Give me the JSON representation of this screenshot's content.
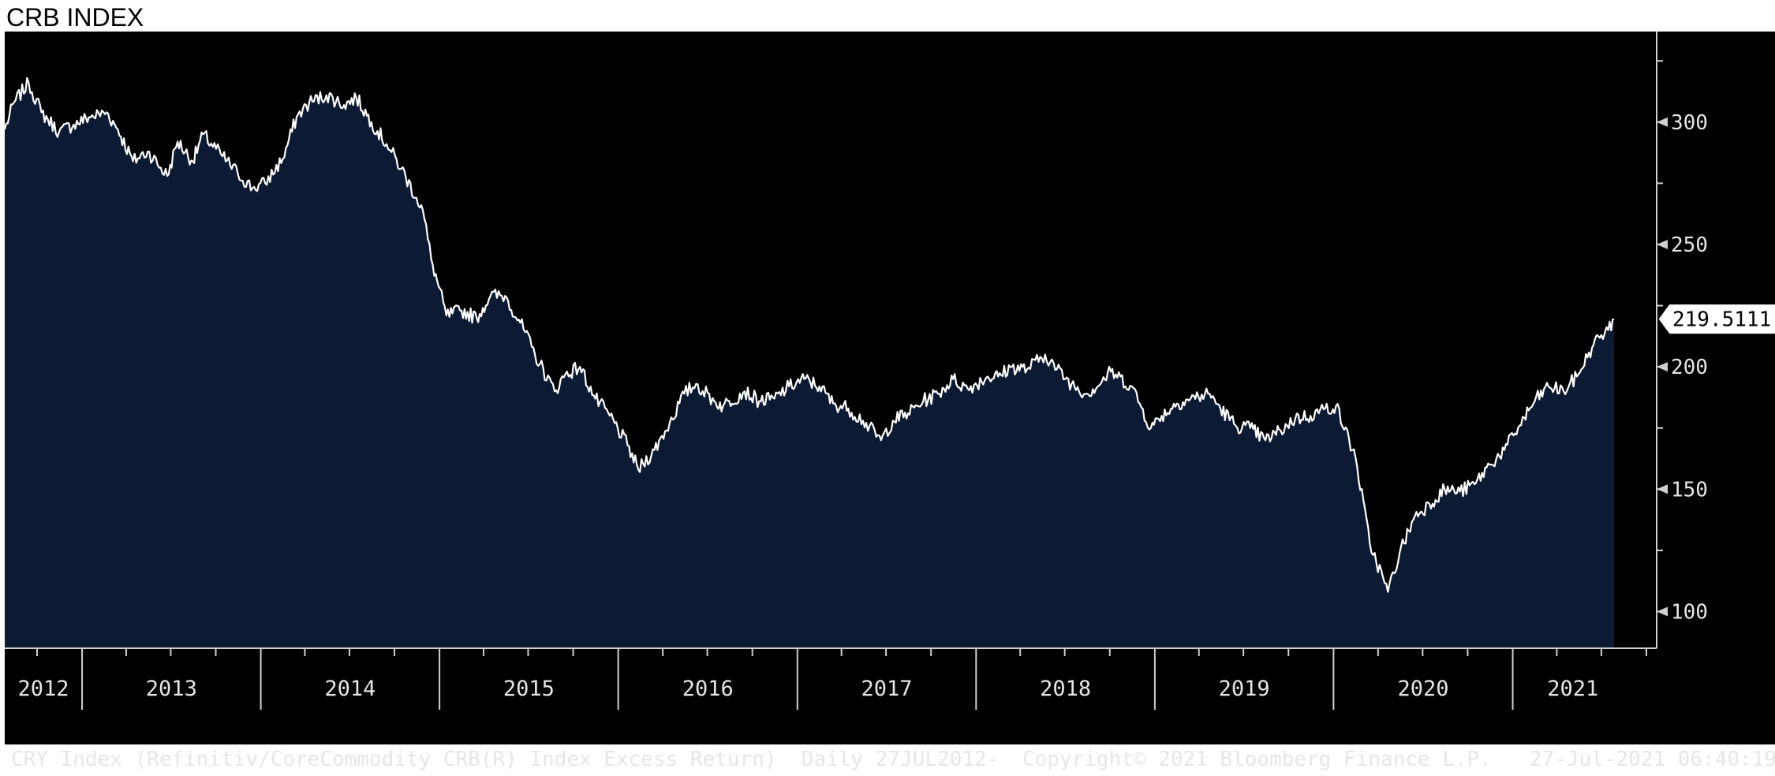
{
  "title": "CRB INDEX",
  "footer": {
    "description": "CRY Index (Refinitiv/CoreCommodity CRB(R) Index Excess Return)  Daily 27JUL2012-",
    "copyright": "Copyright© 2021 Bloomberg Finance L.P.",
    "timestamp": "27-Jul-2021 06:40:19"
  },
  "colors": {
    "background": "#000000",
    "area_fill": "#0c1a33",
    "line": "#ffffff",
    "axis": "#d0d0d0",
    "text": "#e6e6e6"
  },
  "chart_data": {
    "type": "area",
    "title": "CRB INDEX",
    "series_name": "CRY Index",
    "frequency": "Daily",
    "x_range": [
      "2012-07-27",
      "2021-07-27"
    ],
    "ylim": [
      85,
      337
    ],
    "y_axis_side": "right",
    "yticks": [
      100,
      150,
      200,
      250,
      300
    ],
    "x_tick_labels": [
      "2012",
      "2013",
      "2014",
      "2015",
      "2016",
      "2017",
      "2018",
      "2019",
      "2020",
      "2021"
    ],
    "last_value": "219.5111",
    "x": [
      "2012-07-27",
      "2012-08-15",
      "2012-09-14",
      "2012-10-10",
      "2012-11-15",
      "2012-12-15",
      "2013-01-15",
      "2013-02-20",
      "2013-03-15",
      "2013-04-15",
      "2013-05-15",
      "2013-06-24",
      "2013-07-15",
      "2013-08-15",
      "2013-09-05",
      "2013-10-15",
      "2013-11-15",
      "2013-12-15",
      "2014-01-10",
      "2014-02-15",
      "2014-03-15",
      "2014-04-10",
      "2014-05-15",
      "2014-06-20",
      "2014-07-15",
      "2014-08-15",
      "2014-09-15",
      "2014-10-15",
      "2014-11-15",
      "2014-11-28",
      "2014-12-15",
      "2015-01-15",
      "2015-02-15",
      "2015-03-18",
      "2015-04-15",
      "2015-05-15",
      "2015-06-15",
      "2015-07-15",
      "2015-08-24",
      "2015-09-15",
      "2015-10-15",
      "2015-11-15",
      "2015-12-15",
      "2016-01-20",
      "2016-02-11",
      "2016-03-15",
      "2016-04-15",
      "2016-05-15",
      "2016-06-08",
      "2016-07-15",
      "2016-08-02",
      "2016-09-15",
      "2016-10-15",
      "2016-11-15",
      "2016-12-15",
      "2017-01-15",
      "2017-02-15",
      "2017-03-15",
      "2017-04-15",
      "2017-05-15",
      "2017-06-21",
      "2017-07-15",
      "2017-08-15",
      "2017-09-15",
      "2017-10-15",
      "2017-11-15",
      "2017-12-15",
      "2018-01-25",
      "2018-02-15",
      "2018-03-15",
      "2018-04-15",
      "2018-05-22",
      "2018-06-15",
      "2018-07-15",
      "2018-08-15",
      "2018-09-15",
      "2018-10-03",
      "2018-11-15",
      "2018-12-24",
      "2019-01-15",
      "2019-02-15",
      "2019-03-15",
      "2019-04-23",
      "2019-05-15",
      "2019-06-15",
      "2019-07-15",
      "2019-08-15",
      "2019-09-15",
      "2019-10-15",
      "2019-11-15",
      "2019-12-15",
      "2020-01-06",
      "2020-02-15",
      "2020-03-15",
      "2020-04-21",
      "2020-05-15",
      "2020-06-15",
      "2020-07-15",
      "2020-08-15",
      "2020-09-15",
      "2020-10-15",
      "2020-11-15",
      "2020-12-15",
      "2021-01-15",
      "2021-02-15",
      "2021-03-15",
      "2021-04-15",
      "2021-05-12",
      "2021-06-15",
      "2021-07-01",
      "2021-07-15",
      "2021-07-27"
    ],
    "y": [
      297,
      308,
      316,
      304,
      296,
      299,
      302,
      304,
      297,
      284,
      288,
      278,
      292,
      284,
      295,
      286,
      279,
      273,
      275,
      285,
      302,
      308,
      311,
      307,
      310,
      300,
      291,
      281,
      269,
      264,
      244,
      221,
      223,
      220,
      229,
      229,
      218,
      205,
      190,
      197,
      200,
      187,
      180,
      168,
      158,
      166,
      177,
      189,
      193,
      186,
      184,
      190,
      186,
      187,
      192,
      195,
      192,
      185,
      183,
      178,
      170,
      178,
      181,
      186,
      189,
      195,
      191,
      196,
      196,
      200,
      199,
      205,
      199,
      193,
      189,
      194,
      198,
      192,
      175,
      180,
      185,
      187,
      189,
      183,
      176,
      175,
      170,
      174,
      179,
      180,
      183,
      184,
      163,
      128,
      108,
      124,
      139,
      144,
      150,
      149,
      152,
      160,
      166,
      176,
      186,
      192,
      190,
      196,
      209,
      213,
      215,
      219.5111
    ]
  }
}
